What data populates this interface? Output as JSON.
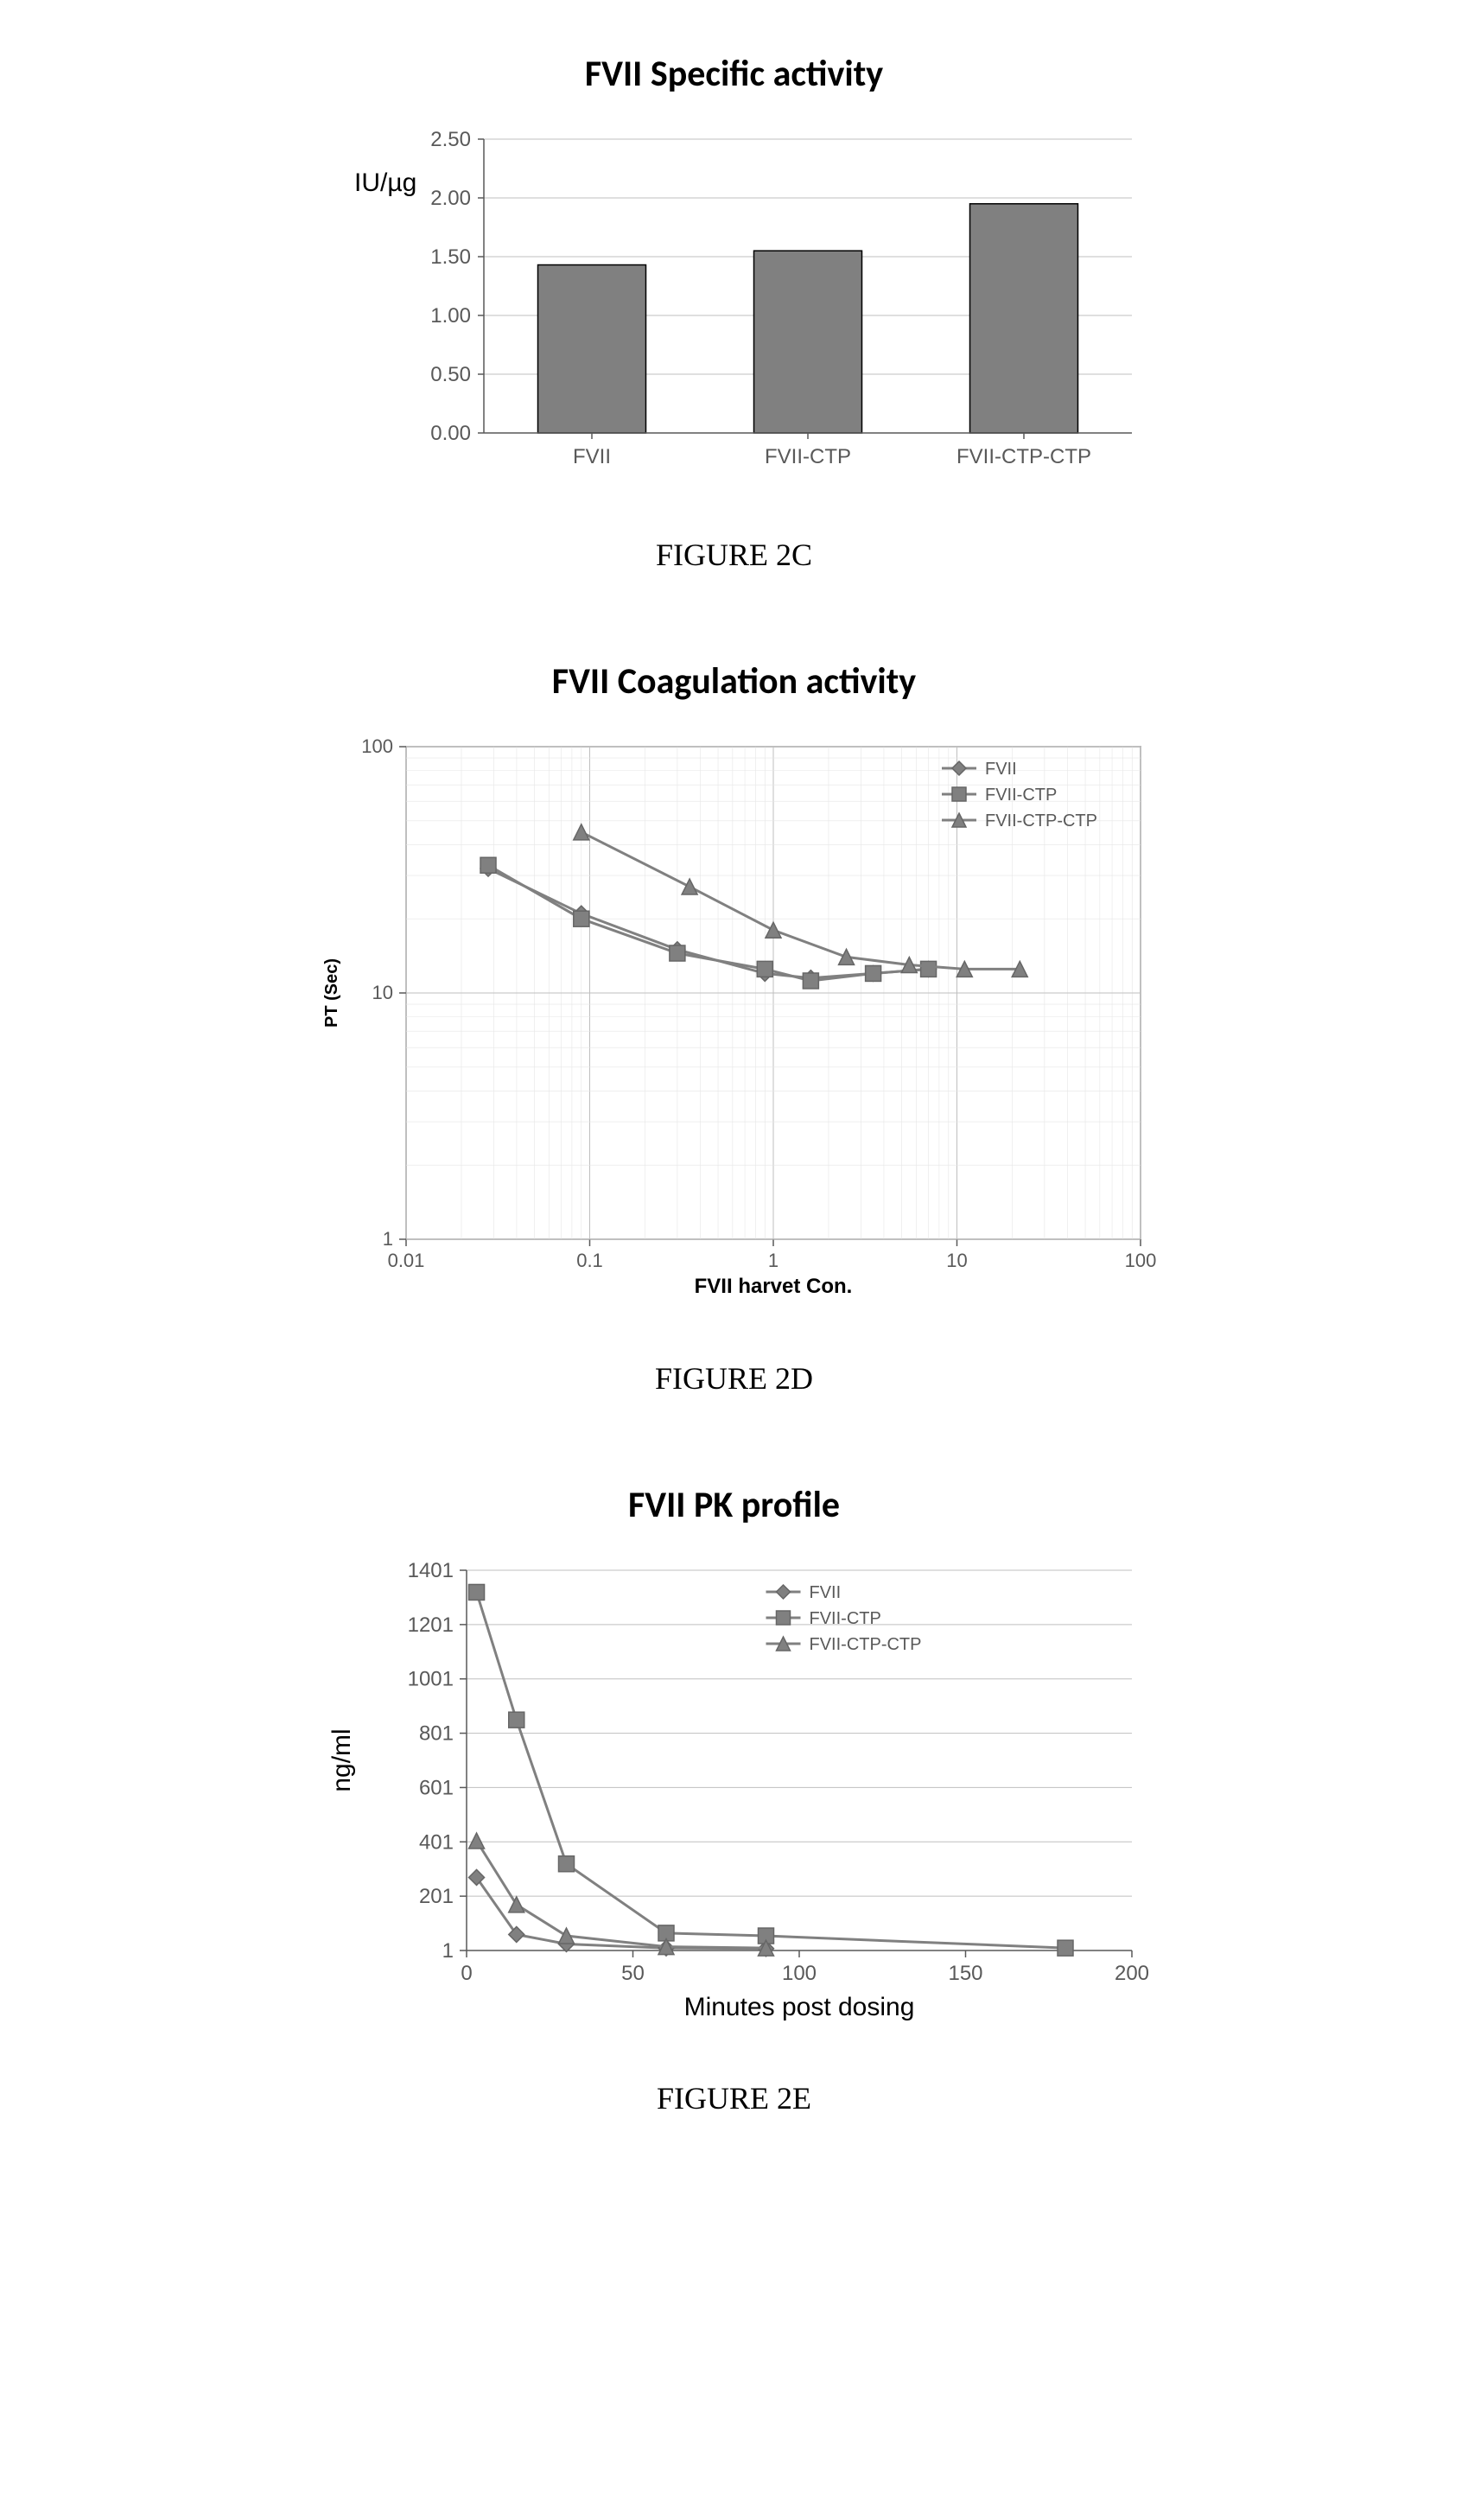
{
  "figure2c": {
    "type": "bar",
    "title": "FVII  Specific activity",
    "caption": "FIGURE 2C",
    "ylabel": "IU/µg",
    "categories": [
      "FVII",
      "FVII-CTP",
      "FVII-CTP-CTP"
    ],
    "values": [
      1.43,
      1.55,
      1.95
    ],
    "bar_color": "#808080",
    "border_color": "#000000",
    "ylim": [
      0,
      2.5
    ],
    "ytick_step": 0.5,
    "ytick_labels": [
      "0.00",
      "0.50",
      "1.00",
      "1.50",
      "2.00",
      "2.50"
    ],
    "label_fontsize": 26,
    "tick_fontsize": 24,
    "grid_color": "#bfbfbf",
    "background_color": "#ffffff"
  },
  "figure2d": {
    "type": "line-loglog",
    "title": "FVII Coagulation activity",
    "caption": "FIGURE 2D",
    "xlabel": "FVII harvet  Con.",
    "ylabel": "PT (Sec)",
    "xlim": [
      0.01,
      100
    ],
    "ylim": [
      1,
      100
    ],
    "xticks": [
      0.01,
      0.1,
      1,
      10,
      100
    ],
    "yticks": [
      1,
      10,
      100
    ],
    "xtick_labels": [
      "0.01",
      "0.1",
      "1",
      "10",
      "100"
    ],
    "ytick_labels": [
      "1",
      "10",
      "100"
    ],
    "series": [
      {
        "name": "FVII",
        "marker": "diamond",
        "color": "#808080",
        "x": [
          0.028,
          0.09,
          0.3,
          0.9,
          1.6,
          3.5,
          7
        ],
        "y": [
          32,
          21,
          15,
          12,
          11.5,
          12,
          12.5
        ]
      },
      {
        "name": "FVII-CTP",
        "marker": "square",
        "color": "#808080",
        "x": [
          0.028,
          0.09,
          0.3,
          0.9,
          1.6,
          3.5,
          7
        ],
        "y": [
          33,
          20,
          14.5,
          12.5,
          11.2,
          12,
          12.5
        ]
      },
      {
        "name": "FVII-CTP-CTP",
        "marker": "triangle",
        "color": "#808080",
        "x": [
          0.09,
          0.35,
          1.0,
          2.5,
          5.5,
          11,
          22
        ],
        "y": [
          45,
          27,
          18,
          14,
          13,
          12.5,
          12.5
        ]
      }
    ],
    "label_fontsize_x": 24,
    "label_fontsize_y": 20,
    "tick_fontsize": 22,
    "legend_fontsize": 20,
    "grid_color": "#bfbfbf",
    "background_color": "#ffffff",
    "line_width": 3,
    "marker_size": 9
  },
  "figure2e": {
    "type": "line",
    "title": "FVII PK profile",
    "caption": "FIGURE 2E",
    "xlabel": "Minutes post dosing",
    "ylabel": "ng/ml",
    "xlim": [
      0,
      200
    ],
    "ylim": [
      1,
      1401
    ],
    "xticks": [
      0,
      50,
      100,
      150,
      200
    ],
    "yticks": [
      1,
      201,
      401,
      601,
      801,
      1001,
      1201,
      1401
    ],
    "series": [
      {
        "name": "FVII",
        "marker": "diamond",
        "color": "#808080",
        "x": [
          3,
          15,
          30,
          60,
          90
        ],
        "y": [
          270,
          60,
          25,
          10,
          8
        ]
      },
      {
        "name": "FVII-CTP",
        "marker": "square",
        "color": "#808080",
        "x": [
          3,
          15,
          30,
          60,
          90,
          180
        ],
        "y": [
          1320,
          850,
          320,
          65,
          55,
          10
        ]
      },
      {
        "name": "FVII-CTP-CTP",
        "marker": "triangle",
        "color": "#808080",
        "x": [
          3,
          15,
          30,
          60,
          90
        ],
        "y": [
          405,
          170,
          55,
          15,
          10
        ]
      }
    ],
    "label_fontsize_x": 30,
    "label_fontsize_y": 30,
    "tick_fontsize": 24,
    "legend_fontsize": 20,
    "grid_color": "#bfbfbf",
    "background_color": "#ffffff",
    "line_width": 3,
    "marker_size": 9
  }
}
